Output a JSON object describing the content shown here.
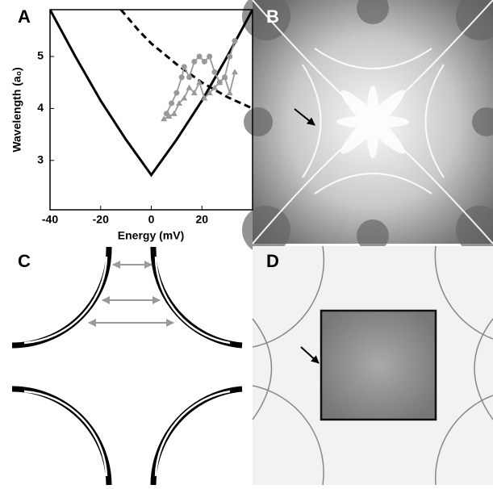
{
  "panels": [
    "A",
    "B",
    "C",
    "D"
  ],
  "chart_data": {
    "type": "line",
    "xlabel": "Energy (mV)",
    "ylabel": "Wavelength (a₀)",
    "xlim": [
      -40,
      40
    ],
    "xticks": [
      -40,
      -20,
      0,
      20
    ],
    "ylim": [
      2.05,
      5.9
    ],
    "yticks": [
      3,
      4,
      5
    ],
    "series": [
      {
        "color": "#000000",
        "dashed": false,
        "marker": "none",
        "x": [
          -40,
          -30,
          -20,
          -10,
          0,
          10,
          20,
          30,
          40
        ],
        "values": [
          5.9,
          5.0,
          4.15,
          3.4,
          2.72,
          3.4,
          4.15,
          5.0,
          5.9
        ]
      },
      {
        "color": "#000000",
        "dashed": true,
        "marker": "none",
        "x": [
          -12,
          -5,
          0,
          10,
          20,
          30,
          40
        ],
        "values": [
          5.9,
          5.5,
          5.25,
          4.85,
          4.5,
          4.22,
          4.0
        ]
      },
      {
        "color": "#999999",
        "dashed": false,
        "marker": "circle",
        "x": [
          6,
          8,
          10,
          12,
          13,
          15,
          17,
          19,
          21,
          23,
          25,
          27,
          29,
          31,
          33
        ],
        "values": [
          3.9,
          4.1,
          4.3,
          4.6,
          4.8,
          4.6,
          4.9,
          5.0,
          4.9,
          5.0,
          4.7,
          4.5,
          4.6,
          5.0,
          5.3
        ]
      },
      {
        "color": "#999999",
        "dashed": false,
        "marker": "triangle",
        "x": [
          5,
          7,
          9,
          11,
          13,
          15,
          17,
          19,
          21,
          23,
          25,
          27,
          29,
          31,
          33
        ],
        "values": [
          3.8,
          3.85,
          3.9,
          4.1,
          4.2,
          4.4,
          4.3,
          4.5,
          4.2,
          4.3,
          4.4,
          4.5,
          4.6,
          4.3,
          4.7
        ]
      }
    ]
  }
}
